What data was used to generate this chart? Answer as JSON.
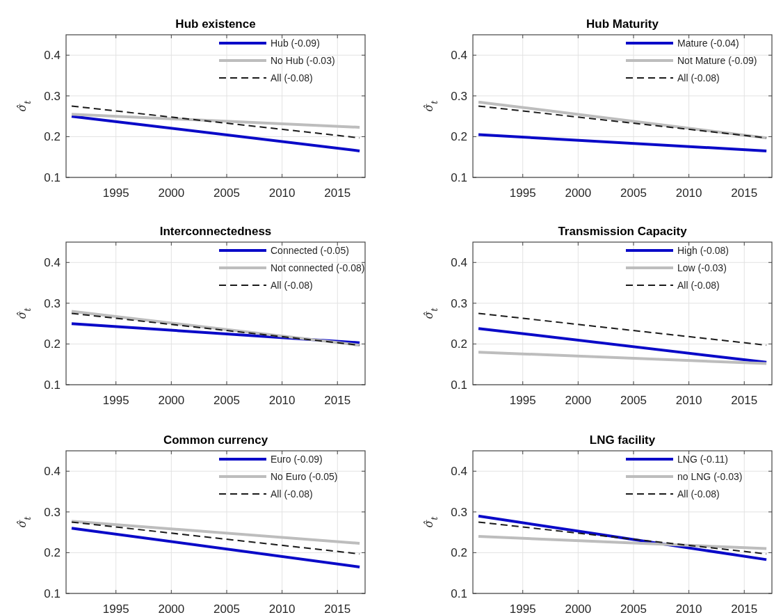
{
  "chart_data": [
    {
      "type": "line",
      "title": "Hub existence",
      "ylabel": "σ̂$_{t}$",
      "x": [
        "1991",
        "2017"
      ],
      "xlim": [
        "1990-07",
        "2017-07"
      ],
      "ylim": [
        0.1,
        0.45
      ],
      "xticks": [
        "1995",
        "2000",
        "2005",
        "2010",
        "2015"
      ],
      "yticks": [
        0.1,
        0.2,
        0.3,
        0.4
      ],
      "grid": true,
      "legend": "top right",
      "series": [
        {
          "name": "Hub (-0.09)",
          "color": "#0a0ac8",
          "values": [
            0.25,
            0.165
          ],
          "line_style": "solid"
        },
        {
          "name": "No Hub (-0.03)",
          "color": "#bdbdbd",
          "values": [
            0.255,
            0.223
          ],
          "line_style": "solid"
        },
        {
          "name": "All (-0.08)",
          "color": "#1a1a1a",
          "values": [
            0.275,
            0.197
          ],
          "line_style": "dashed"
        }
      ]
    },
    {
      "type": "line",
      "title": "Hub Maturity",
      "ylabel": "σ̂$_{t}$",
      "x": [
        "1991",
        "2017"
      ],
      "xlim": [
        "1990-07",
        "2017-07"
      ],
      "ylim": [
        0.1,
        0.45
      ],
      "xticks": [
        "1995",
        "2000",
        "2005",
        "2010",
        "2015"
      ],
      "yticks": [
        0.1,
        0.2,
        0.3,
        0.4
      ],
      "grid": true,
      "legend": "top right",
      "series": [
        {
          "name": "Mature (-0.04)",
          "color": "#0a0ac8",
          "values": [
            0.205,
            0.165
          ],
          "line_style": "solid"
        },
        {
          "name": "Not Mature (-0.09)",
          "color": "#bdbdbd",
          "values": [
            0.285,
            0.197
          ],
          "line_style": "solid"
        },
        {
          "name": "All (-0.08)",
          "color": "#1a1a1a",
          "values": [
            0.275,
            0.197
          ],
          "line_style": "dashed"
        }
      ]
    },
    {
      "type": "line",
      "title": "Interconnectedness",
      "ylabel": "σ̂$_{t}$",
      "x": [
        "1991",
        "2017"
      ],
      "xlim": [
        "1990-07",
        "2017-07"
      ],
      "ylim": [
        0.1,
        0.45
      ],
      "xticks": [
        "1995",
        "2000",
        "2005",
        "2010",
        "2015"
      ],
      "yticks": [
        0.1,
        0.2,
        0.3,
        0.4
      ],
      "grid": true,
      "legend": "top right",
      "series": [
        {
          "name": "Connected (-0.05)",
          "color": "#0a0ac8",
          "values": [
            0.25,
            0.203
          ],
          "line_style": "solid"
        },
        {
          "name": "Not connected (-0.08)",
          "color": "#bdbdbd",
          "values": [
            0.28,
            0.197
          ],
          "line_style": "solid"
        },
        {
          "name": "All (-0.08)",
          "color": "#1a1a1a",
          "values": [
            0.275,
            0.197
          ],
          "line_style": "dashed"
        }
      ]
    },
    {
      "type": "line",
      "title": "Transmission Capacity",
      "ylabel": "σ̂$_{t}$",
      "x": [
        "1991",
        "2017"
      ],
      "xlim": [
        "1990-07",
        "2017-07"
      ],
      "ylim": [
        0.1,
        0.45
      ],
      "xticks": [
        "1995",
        "2000",
        "2005",
        "2010",
        "2015"
      ],
      "yticks": [
        0.1,
        0.2,
        0.3,
        0.4
      ],
      "grid": true,
      "legend": "top right",
      "series": [
        {
          "name": "High (-0.08)",
          "color": "#0a0ac8",
          "values": [
            0.238,
            0.155
          ],
          "line_style": "solid"
        },
        {
          "name": "Low (-0.03)",
          "color": "#bdbdbd",
          "values": [
            0.18,
            0.152
          ],
          "line_style": "solid"
        },
        {
          "name": "All (-0.08)",
          "color": "#1a1a1a",
          "values": [
            0.275,
            0.197
          ],
          "line_style": "dashed"
        }
      ]
    },
    {
      "type": "line",
      "title": "Common currency",
      "ylabel": "σ̂$_{t}$",
      "x": [
        "1991",
        "2017"
      ],
      "xlim": [
        "1990-07",
        "2017-07"
      ],
      "ylim": [
        0.1,
        0.45
      ],
      "xticks": [
        "1995",
        "2000",
        "2005",
        "2010",
        "2015"
      ],
      "yticks": [
        0.1,
        0.2,
        0.3,
        0.4
      ],
      "grid": true,
      "legend": "top right",
      "series": [
        {
          "name": "Euro (-0.09)",
          "color": "#0a0ac8",
          "values": [
            0.26,
            0.165
          ],
          "line_style": "solid"
        },
        {
          "name": "No Euro (-0.05)",
          "color": "#bdbdbd",
          "values": [
            0.277,
            0.223
          ],
          "line_style": "solid"
        },
        {
          "name": "All (-0.08)",
          "color": "#1a1a1a",
          "values": [
            0.275,
            0.197
          ],
          "line_style": "dashed"
        }
      ]
    },
    {
      "type": "line",
      "title": "LNG facility",
      "ylabel": "σ̂$_{t}$",
      "x": [
        "1991",
        "2017"
      ],
      "xlim": [
        "1990-07",
        "2017-07"
      ],
      "ylim": [
        0.1,
        0.45
      ],
      "xticks": [
        "1995",
        "2000",
        "2005",
        "2010",
        "2015"
      ],
      "yticks": [
        0.1,
        0.2,
        0.3,
        0.4
      ],
      "grid": true,
      "legend": "top right",
      "series": [
        {
          "name": "LNG (-0.11)",
          "color": "#0a0ac8",
          "values": [
            0.29,
            0.183
          ],
          "line_style": "solid"
        },
        {
          "name": "no LNG (-0.03)",
          "color": "#bdbdbd",
          "values": [
            0.24,
            0.21
          ],
          "line_style": "solid"
        },
        {
          "name": "All (-0.08)",
          "color": "#1a1a1a",
          "values": [
            0.275,
            0.197
          ],
          "line_style": "dashed"
        }
      ]
    }
  ]
}
